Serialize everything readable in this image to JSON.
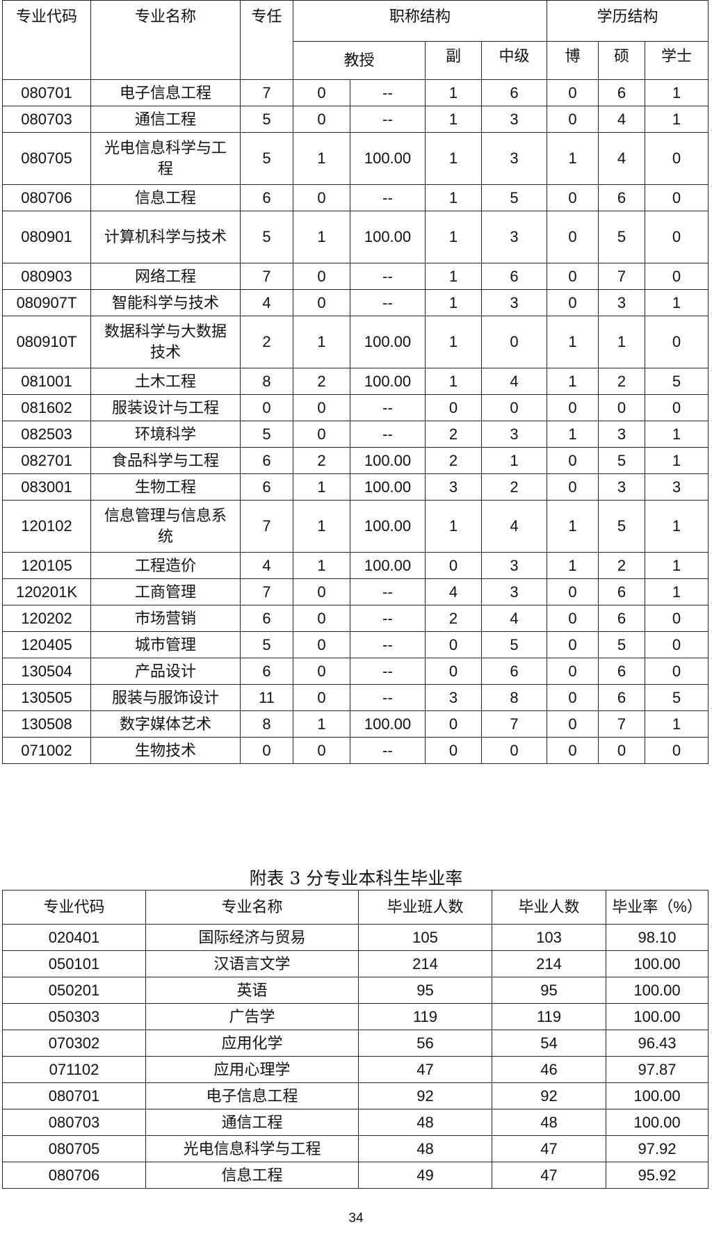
{
  "table1": {
    "headers": {
      "code": "专业代码",
      "name": "专业名称",
      "teachers": "专任",
      "title_struct": "职称结构",
      "edu_struct": "学历结构",
      "prof": "教授",
      "assoc": "副",
      "mid": "中级",
      "phd": "博",
      "master": "硕",
      "bachelor": "学士"
    },
    "rows": [
      [
        "080701",
        "电子信息工程",
        "7",
        "0",
        "--",
        "1",
        "6",
        "0",
        "6",
        "1"
      ],
      [
        "080703",
        "通信工程",
        "5",
        "0",
        "--",
        "1",
        "3",
        "0",
        "4",
        "1"
      ],
      [
        "080705",
        "光电信息科学与工程",
        "5",
        "1",
        "100.00",
        "1",
        "3",
        "1",
        "4",
        "0"
      ],
      [
        "080706",
        "信息工程",
        "6",
        "0",
        "--",
        "1",
        "5",
        "0",
        "6",
        "0"
      ],
      [
        "080901",
        "计算机科学与技术",
        "5",
        "1",
        "100.00",
        "1",
        "3",
        "0",
        "5",
        "0"
      ],
      [
        "080903",
        "网络工程",
        "7",
        "0",
        "--",
        "1",
        "6",
        "0",
        "7",
        "0"
      ],
      [
        "080907T",
        "智能科学与技术",
        "4",
        "0",
        "--",
        "1",
        "3",
        "0",
        "3",
        "1"
      ],
      [
        "080910T",
        "数据科学与大数据技术",
        "2",
        "1",
        "100.00",
        "1",
        "0",
        "1",
        "1",
        "0"
      ],
      [
        "081001",
        "土木工程",
        "8",
        "2",
        "100.00",
        "1",
        "4",
        "1",
        "2",
        "5"
      ],
      [
        "081602",
        "服装设计与工程",
        "0",
        "0",
        "--",
        "0",
        "0",
        "0",
        "0",
        "0"
      ],
      [
        "082503",
        "环境科学",
        "5",
        "0",
        "--",
        "2",
        "3",
        "1",
        "3",
        "1"
      ],
      [
        "082701",
        "食品科学与工程",
        "6",
        "2",
        "100.00",
        "2",
        "1",
        "0",
        "5",
        "1"
      ],
      [
        "083001",
        "生物工程",
        "6",
        "1",
        "100.00",
        "3",
        "2",
        "0",
        "3",
        "3"
      ],
      [
        "120102",
        "信息管理与信息系统",
        "7",
        "1",
        "100.00",
        "1",
        "4",
        "1",
        "5",
        "1"
      ],
      [
        "120105",
        "工程造价",
        "4",
        "1",
        "100.00",
        "0",
        "3",
        "1",
        "2",
        "1"
      ],
      [
        "120201K",
        "工商管理",
        "7",
        "0",
        "--",
        "4",
        "3",
        "0",
        "6",
        "1"
      ],
      [
        "120202",
        "市场营销",
        "6",
        "0",
        "--",
        "2",
        "4",
        "0",
        "6",
        "0"
      ],
      [
        "120405",
        "城市管理",
        "5",
        "0",
        "--",
        "0",
        "5",
        "0",
        "5",
        "0"
      ],
      [
        "130504",
        "产品设计",
        "6",
        "0",
        "--",
        "0",
        "6",
        "0",
        "6",
        "0"
      ],
      [
        "130505",
        "服装与服饰设计",
        "11",
        "0",
        "--",
        "3",
        "8",
        "0",
        "6",
        "5"
      ],
      [
        "130508",
        "数字媒体艺术",
        "8",
        "1",
        "100.00",
        "0",
        "7",
        "0",
        "7",
        "1"
      ],
      [
        "071002",
        "生物技术",
        "0",
        "0",
        "--",
        "0",
        "0",
        "0",
        "0",
        "0"
      ]
    ]
  },
  "table2": {
    "caption": "附表 3 分专业本科生毕业率",
    "headers": [
      "专业代码",
      "专业名称",
      "毕业班人数",
      "毕业人数",
      "毕业率（%）"
    ],
    "rows": [
      [
        "020401",
        "国际经济与贸易",
        "105",
        "103",
        "98.10"
      ],
      [
        "050101",
        "汉语言文学",
        "214",
        "214",
        "100.00"
      ],
      [
        "050201",
        "英语",
        "95",
        "95",
        "100.00"
      ],
      [
        "050303",
        "广告学",
        "119",
        "119",
        "100.00"
      ],
      [
        "070302",
        "应用化学",
        "56",
        "54",
        "96.43"
      ],
      [
        "071102",
        "应用心理学",
        "47",
        "46",
        "97.87"
      ],
      [
        "080701",
        "电子信息工程",
        "92",
        "92",
        "100.00"
      ],
      [
        "080703",
        "通信工程",
        "48",
        "48",
        "100.00"
      ],
      [
        "080705",
        "光电信息科学与工程",
        "48",
        "47",
        "97.92"
      ],
      [
        "080706",
        "信息工程",
        "49",
        "47",
        "95.92"
      ]
    ]
  },
  "page_number": "34"
}
